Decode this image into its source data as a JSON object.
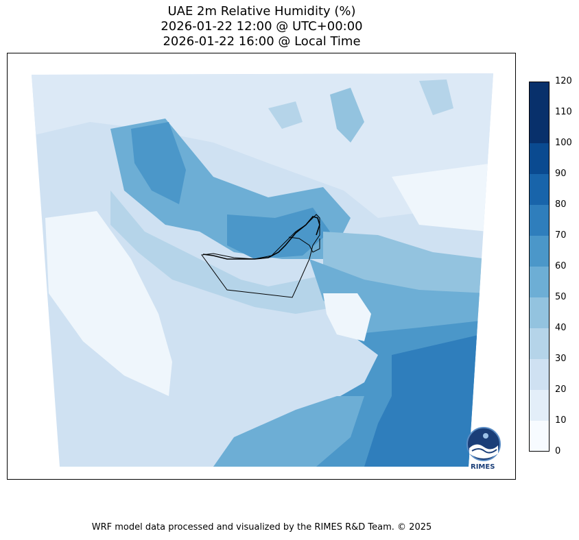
{
  "title": {
    "line1": "UAE 2m Relative Humidity (%)",
    "line2": "2026-01-22 12:00 @ UTC+00:00",
    "line3": "2026-01-22 16:00 @ Local Time"
  },
  "colorbar": {
    "ticks": [
      "120",
      "110",
      "100",
      "90",
      "80",
      "70",
      "60",
      "50",
      "40",
      "30",
      "20",
      "10",
      "0"
    ],
    "colors": [
      "#f7fbff",
      "#e3eef9",
      "#cfe1f2",
      "#b5d4e9",
      "#93c3df",
      "#6daed5",
      "#4b97c9",
      "#2f7ebc",
      "#1864aa",
      "#0a4a90",
      "#08306b",
      "#08306b"
    ]
  },
  "map": {
    "colors": {
      "very_dry": "#eff6fc",
      "dry": "#dce9f6",
      "light": "#cfe1f2",
      "mid": "#b5d4e9",
      "moist": "#93c3df",
      "humid": "#6daed5",
      "wet": "#4b97c9",
      "very_wet": "#2f7ebc"
    }
  },
  "logo": {
    "text": "RIMES"
  },
  "footer": {
    "text": "WRF model data processed and visualized by the RIMES R&D Team. © 2025"
  }
}
